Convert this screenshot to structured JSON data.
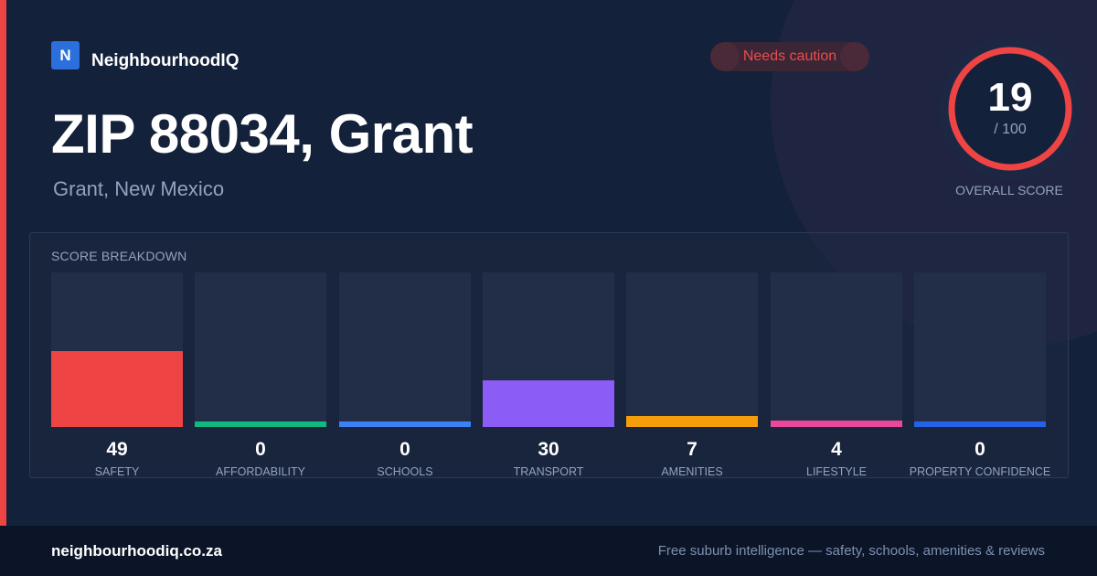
{
  "brand": {
    "logo_letter": "N",
    "name": "NeighbourhoodIQ"
  },
  "badge": {
    "label": "Needs caution",
    "color": "#ef4444"
  },
  "header": {
    "title": "ZIP 88034, Grant",
    "subtitle": "Grant, New Mexico"
  },
  "overall": {
    "score": "19",
    "max": "/ 100",
    "score_value": 19,
    "label": "OVERALL SCORE",
    "ring_color": "#ef4444"
  },
  "breakdown": {
    "title": "SCORE BREAKDOWN",
    "items": [
      {
        "label": "SAFETY",
        "value": "49",
        "score": 49,
        "color": "#ef4444"
      },
      {
        "label": "AFFORDABILITY",
        "value": "0",
        "score": 0,
        "color": "#10b981"
      },
      {
        "label": "SCHOOLS",
        "value": "0",
        "score": 0,
        "color": "#3b82f6"
      },
      {
        "label": "TRANSPORT",
        "value": "30",
        "score": 30,
        "color": "#8b5cf6"
      },
      {
        "label": "AMENITIES",
        "value": "7",
        "score": 7,
        "color": "#f59e0b"
      },
      {
        "label": "LIFESTYLE",
        "value": "4",
        "score": 4,
        "color": "#ec4899"
      },
      {
        "label": "PROPERTY CONFIDENCE",
        "value": "0",
        "score": 0,
        "color": "#2563eb"
      }
    ]
  },
  "footer": {
    "url": "neighbourhoodiq.co.za",
    "tagline": "Free suburb intelligence — safety, schools, amenities & reviews"
  }
}
